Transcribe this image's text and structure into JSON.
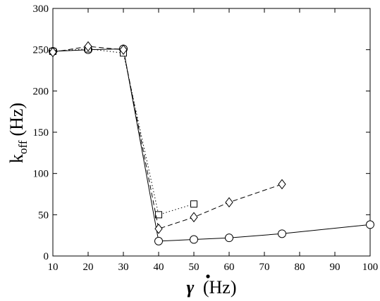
{
  "chart_data": {
    "type": "line",
    "xlabel": {
      "symbol": "γ",
      "unit": "(Hz)"
    },
    "ylabel": {
      "main": "k",
      "subscript": "off",
      "unit": "(Hz)"
    },
    "xlim": [
      10,
      100
    ],
    "ylim": [
      0,
      300
    ],
    "xticks": [
      "10",
      "20",
      "30",
      "40",
      "50",
      "60",
      "70",
      "80",
      "90",
      "100"
    ],
    "yticks": [
      "0",
      "50",
      "100",
      "150",
      "200",
      "250",
      "300"
    ],
    "grid": false,
    "legend": "none",
    "series": [
      {
        "marker": "circle",
        "line_style": "solid",
        "x": [
          10,
          20,
          30,
          40,
          50,
          60,
          75,
          100
        ],
        "y": [
          248,
          250,
          251,
          18,
          20,
          22,
          27,
          38
        ]
      },
      {
        "marker": "square",
        "line_style": "dotted",
        "x": [
          10,
          20,
          30,
          40,
          50
        ],
        "y": [
          248,
          251,
          246,
          50,
          63
        ]
      },
      {
        "marker": "diamond",
        "line_style": "dashed",
        "x": [
          10,
          20,
          30,
          40,
          50,
          60,
          75
        ],
        "y": [
          247,
          254,
          250,
          33,
          47,
          65,
          87
        ]
      }
    ]
  }
}
